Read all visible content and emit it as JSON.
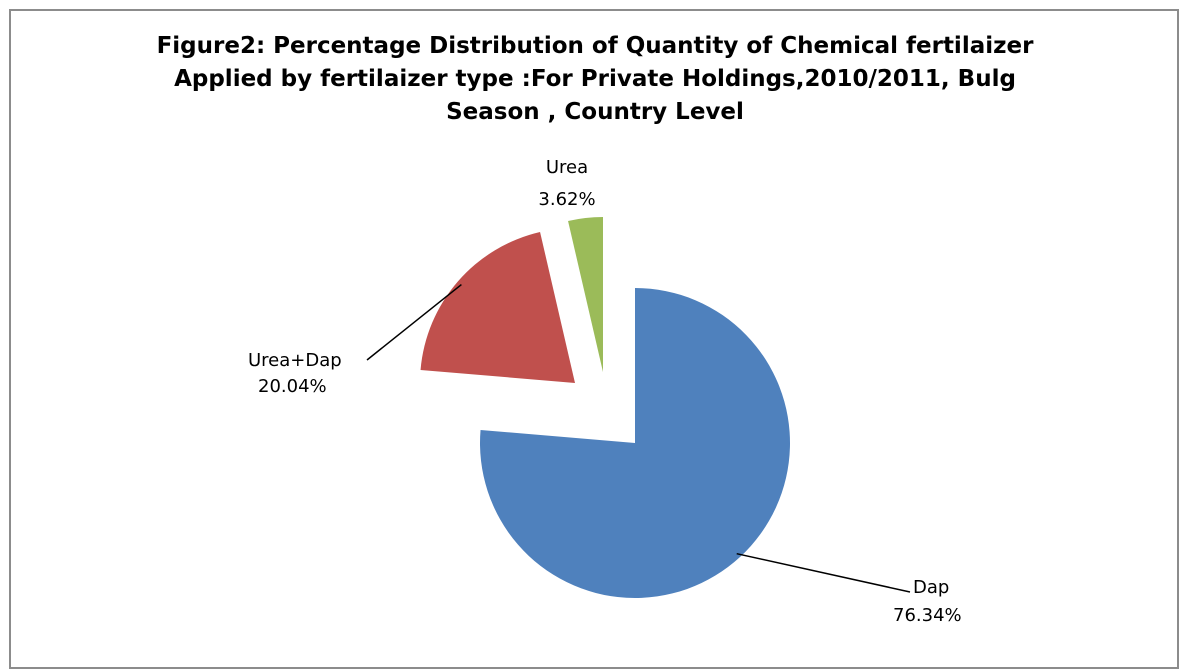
{
  "chart_data": {
    "type": "pie",
    "title_lines": [
      "Figure2: Percentage Distribution of Quantity of Chemical fertilaizer",
      "Applied by fertilaizer type :For Private Holdings,2010/2011, Bulg",
      "Season , Country Level"
    ],
    "slices": [
      {
        "label": "Dap",
        "value": 76.34,
        "value_label": "76.34%",
        "color": "#4f81bd"
      },
      {
        "label": "Urea+Dap",
        "value": 20.04,
        "value_label": "20.04%",
        "color": "#c0504d"
      },
      {
        "label": "Urea",
        "value": 3.62,
        "value_label": "3.62%",
        "color": "#9bbb59"
      }
    ],
    "start_angle": "12 o'clock",
    "direction": "clockwise",
    "exploded": true,
    "legend": "none",
    "data_labels": "category name and percentage, outside with leader lines"
  }
}
